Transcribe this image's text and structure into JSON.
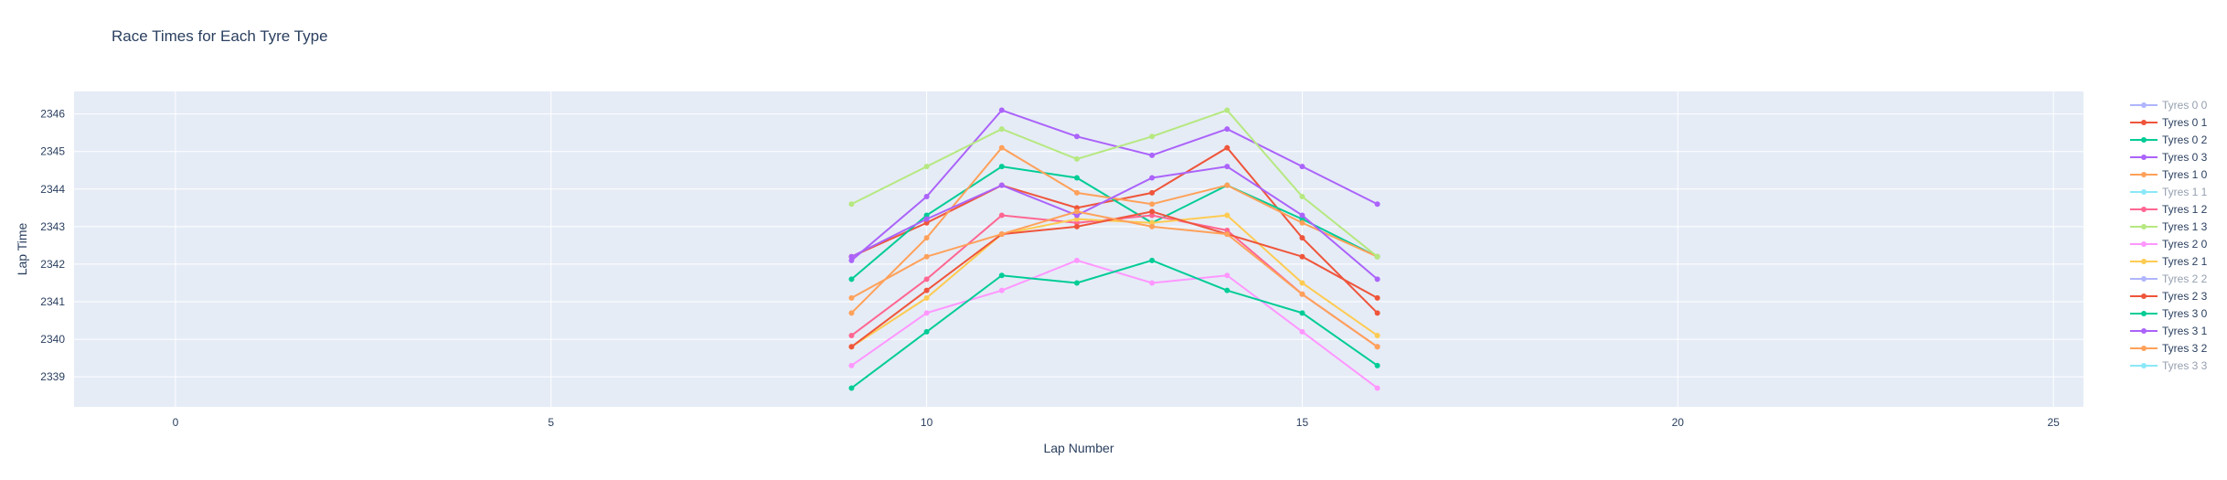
{
  "chart_data": {
    "type": "line",
    "title": "Race Times for Each Tyre Type",
    "xlabel": "Lap Number",
    "ylabel": "Lap Time",
    "xlim": [
      -1.35,
      25.4
    ],
    "ylim": [
      2338.2,
      2346.6
    ],
    "x_ticks": [
      0,
      5,
      10,
      15,
      20,
      25
    ],
    "y_ticks": [
      2339,
      2340,
      2341,
      2342,
      2343,
      2344,
      2345,
      2346
    ],
    "grid": true,
    "legend_position": "right",
    "x": [
      9,
      10,
      11,
      12,
      13,
      14,
      15,
      16
    ],
    "series": [
      {
        "name": "Tyres 0 0",
        "color": "#636efa",
        "visible": false,
        "values": [
          null,
          null,
          null,
          null,
          null,
          null,
          null,
          null
        ]
      },
      {
        "name": "Tyres 0 1",
        "color": "#ef553b",
        "visible": true,
        "values": [
          2342.2,
          2343.1,
          2344.1,
          2343.5,
          2343.9,
          2345.1,
          2342.7,
          2340.7
        ]
      },
      {
        "name": "Tyres 0 2",
        "color": "#00cc96",
        "visible": true,
        "values": [
          2341.6,
          2343.3,
          2344.6,
          2344.3,
          2343.1,
          2344.1,
          2343.2,
          2342.2
        ]
      },
      {
        "name": "Tyres 0 3",
        "color": "#ab63fa",
        "visible": true,
        "values": [
          2342.1,
          2343.8,
          2346.1,
          2345.4,
          2344.9,
          2345.6,
          2344.6,
          2343.6
        ]
      },
      {
        "name": "Tyres 1 0",
        "color": "#ffa15a",
        "visible": true,
        "values": [
          2340.7,
          2342.7,
          2345.1,
          2343.9,
          2343.6,
          2344.1,
          2343.1,
          2342.2
        ]
      },
      {
        "name": "Tyres 1 1",
        "color": "#19d3f3",
        "visible": false,
        "values": [
          null,
          null,
          null,
          null,
          null,
          null,
          null,
          null
        ]
      },
      {
        "name": "Tyres 1 2",
        "color": "#ff6692",
        "visible": true,
        "values": [
          2340.1,
          2341.6,
          2343.3,
          2343.1,
          2343.3,
          2342.9,
          2341.2,
          2339.8
        ]
      },
      {
        "name": "Tyres 1 3",
        "color": "#b6e880",
        "visible": true,
        "values": [
          2343.6,
          2344.6,
          2345.6,
          2344.8,
          2345.4,
          2346.1,
          2343.8,
          2342.2
        ]
      },
      {
        "name": "Tyres 2 0",
        "color": "#ff97ff",
        "visible": true,
        "values": [
          2339.3,
          2340.7,
          2341.3,
          2342.1,
          2341.5,
          2341.7,
          2340.2,
          2338.7
        ]
      },
      {
        "name": "Tyres 2 1",
        "color": "#fecb52",
        "visible": true,
        "values": [
          2339.8,
          2341.1,
          2342.8,
          2343.2,
          2343.1,
          2343.3,
          2341.5,
          2340.1
        ]
      },
      {
        "name": "Tyres 2 2",
        "color": "#636efa",
        "visible": false,
        "values": [
          null,
          null,
          null,
          null,
          null,
          null,
          null,
          null
        ]
      },
      {
        "name": "Tyres 2 3",
        "color": "#ef553b",
        "visible": true,
        "values": [
          2339.8,
          2341.3,
          2342.8,
          2343.0,
          2343.4,
          2342.8,
          2342.2,
          2341.1
        ]
      },
      {
        "name": "Tyres 3 0",
        "color": "#00cc96",
        "visible": true,
        "values": [
          2338.7,
          2340.2,
          2341.7,
          2341.5,
          2342.1,
          2341.3,
          2340.7,
          2339.3
        ]
      },
      {
        "name": "Tyres 3 1",
        "color": "#ab63fa",
        "visible": true,
        "values": [
          2342.2,
          2343.2,
          2344.1,
          2343.3,
          2344.3,
          2344.6,
          2343.3,
          2341.6
        ]
      },
      {
        "name": "Tyres 3 2",
        "color": "#ffa15a",
        "visible": true,
        "values": [
          2341.1,
          2342.2,
          2342.8,
          2343.4,
          2343.0,
          2342.8,
          2341.2,
          2339.8
        ]
      },
      {
        "name": "Tyres 3 3",
        "color": "#19d3f3",
        "visible": false,
        "values": [
          null,
          null,
          null,
          null,
          null,
          null,
          null,
          null
        ]
      }
    ]
  }
}
